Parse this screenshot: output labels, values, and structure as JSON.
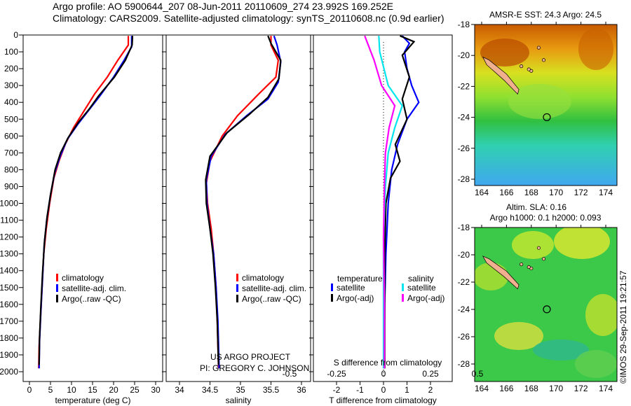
{
  "header": {
    "line1": "Argo profile: AO 5900644_207 08-Jun-2011 20110609_274 23.992S 169.252E",
    "line2": "Climatology: CARS2009. Satellite-adjusted climatology: synTS_20110608.nc (0.9d earlier)"
  },
  "credits": {
    "line1": "US ARGO PROJECT",
    "line2": "PI: GREGORY C. JOHNSON"
  },
  "stamp": "©IMOS 29-Sep-2011 19:21:57",
  "colors": {
    "climatology": "#ff0000",
    "satellite": "#0000ff",
    "argo": "#000000",
    "sal_sat": "#00e5ee",
    "sal_argo": "#ff00ff"
  },
  "chart_data": [
    {
      "type": "line",
      "id": "temperature",
      "xlabel": "temperature (deg C)",
      "xlim": [
        -2,
        31
      ],
      "ylim": [
        2000,
        0
      ],
      "xticks": [
        "0",
        "5",
        "10",
        "15",
        "20",
        "25",
        "30"
      ],
      "yticks": [
        "0",
        "100",
        "200",
        "300",
        "400",
        "500",
        "600",
        "700",
        "800",
        "900",
        "1000",
        "1100",
        "1200",
        "1300",
        "1400",
        "1500",
        "1600",
        "1700",
        "1800",
        "1900",
        "2000"
      ],
      "legend": [
        "climatology",
        "satellite-adj. clim.",
        "Argo(..raw -QC)"
      ],
      "series": [
        {
          "name": "climatology",
          "color": "#ff0000",
          "points": [
            [
              23.5,
              5
            ],
            [
              23.5,
              60
            ],
            [
              21,
              150
            ],
            [
              18.5,
              250
            ],
            [
              15.5,
              350
            ],
            [
              13,
              450
            ],
            [
              10.5,
              550
            ],
            [
              8.5,
              650
            ],
            [
              7,
              750
            ],
            [
              5.8,
              850
            ],
            [
              4.8,
              1000
            ],
            [
              4,
              1150
            ],
            [
              3.4,
              1300
            ],
            [
              3,
              1500
            ],
            [
              2.6,
              1700
            ],
            [
              2.3,
              1850
            ],
            [
              2.2,
              1980
            ]
          ]
        },
        {
          "name": "satellite-adj. clim.",
          "color": "#0000ff",
          "points": [
            [
              24.3,
              5
            ],
            [
              24.3,
              70
            ],
            [
              22.5,
              150
            ],
            [
              20,
              250
            ],
            [
              16.8,
              360
            ],
            [
              14,
              450
            ],
            [
              11.5,
              530
            ],
            [
              9,
              620
            ],
            [
              7.3,
              720
            ],
            [
              6,
              820
            ],
            [
              5,
              950
            ],
            [
              4.1,
              1100
            ],
            [
              3.5,
              1250
            ],
            [
              3.1,
              1450
            ],
            [
              2.7,
              1650
            ],
            [
              2.4,
              1820
            ],
            [
              2.3,
              1980
            ]
          ]
        },
        {
          "name": "Argo(..raw -QC)",
          "color": "#000000",
          "points": [
            [
              24.5,
              5
            ],
            [
              24.4,
              60
            ],
            [
              22.8,
              150
            ],
            [
              20.2,
              250
            ],
            [
              16.5,
              360
            ],
            [
              14.2,
              440
            ],
            [
              11.6,
              520
            ],
            [
              9.2,
              610
            ],
            [
              7.4,
              700
            ],
            [
              6.1,
              800
            ],
            [
              5,
              950
            ],
            [
              4.2,
              1080
            ],
            [
              3.6,
              1220
            ],
            [
              3.1,
              1420
            ],
            [
              2.7,
              1620
            ],
            [
              2.4,
              1800
            ],
            [
              2.3,
              1960
            ]
          ]
        }
      ]
    },
    {
      "type": "line",
      "id": "salinity",
      "xlabel": "salinity",
      "xlim": [
        33.8,
        36.2
      ],
      "ylim": [
        2000,
        0
      ],
      "xticks": [
        "34",
        "34.5",
        "35",
        "35.5",
        "36"
      ],
      "legend": [
        "climatology",
        "satellite-adj. clim.",
        "Argo(..raw -QC)"
      ],
      "series": [
        {
          "name": "climatology",
          "color": "#ff0000",
          "points": [
            [
              35.5,
              5
            ],
            [
              35.5,
              60
            ],
            [
              35.62,
              150
            ],
            [
              35.58,
              250
            ],
            [
              35.3,
              350
            ],
            [
              34.95,
              480
            ],
            [
              34.7,
              600
            ],
            [
              34.5,
              750
            ],
            [
              34.44,
              880
            ],
            [
              34.46,
              1000
            ],
            [
              34.52,
              1150
            ],
            [
              34.56,
              1300
            ],
            [
              34.6,
              1500
            ],
            [
              34.62,
              1700
            ],
            [
              34.64,
              1980
            ]
          ]
        },
        {
          "name": "satellite-adj. clim.",
          "color": "#0000ff",
          "points": [
            [
              35.55,
              5
            ],
            [
              35.6,
              60
            ],
            [
              35.66,
              160
            ],
            [
              35.62,
              280
            ],
            [
              35.45,
              380
            ],
            [
              35.1,
              480
            ],
            [
              34.75,
              590
            ],
            [
              34.52,
              720
            ],
            [
              34.44,
              860
            ],
            [
              34.45,
              1000
            ],
            [
              34.5,
              1150
            ],
            [
              34.56,
              1300
            ],
            [
              34.6,
              1500
            ],
            [
              34.63,
              1700
            ],
            [
              34.65,
              1980
            ]
          ]
        },
        {
          "name": "Argo(..raw -QC)",
          "color": "#000000",
          "points": [
            [
              35.45,
              5
            ],
            [
              35.5,
              50
            ],
            [
              35.66,
              150
            ],
            [
              35.63,
              260
            ],
            [
              35.45,
              370
            ],
            [
              35.15,
              470
            ],
            [
              34.78,
              580
            ],
            [
              34.5,
              720
            ],
            [
              34.43,
              860
            ],
            [
              34.44,
              1000
            ],
            [
              34.5,
              1150
            ],
            [
              34.55,
              1300
            ],
            [
              34.59,
              1500
            ],
            [
              34.62,
              1700
            ],
            [
              34.64,
              1960
            ]
          ]
        }
      ]
    },
    {
      "type": "line",
      "id": "differences",
      "xlabel": "T difference from climatology",
      "x2label": "S difference from climatology",
      "xlim": [
        -3,
        3
      ],
      "ylim": [
        2000,
        0
      ],
      "xticks": [
        "-2",
        "-1",
        "0",
        "1",
        "2"
      ],
      "x2ticks": [
        "-0.5",
        "-0.25",
        "0",
        "0.25",
        "0.5"
      ],
      "legend": {
        "temperature_title": "temperature",
        "salinity_title": "salinity",
        "items": [
          "satellite",
          "Argo(-adj)",
          "satellite",
          "Argo(-adj)"
        ]
      },
      "series": [
        {
          "name": "temperature satellite",
          "color": "#0000ff",
          "points": [
            [
              0.8,
              5
            ],
            [
              1.1,
              50
            ],
            [
              0.9,
              100
            ],
            [
              1,
              200
            ],
            [
              1.2,
              300
            ],
            [
              1.5,
              400
            ],
            [
              1,
              500
            ],
            [
              0.6,
              650
            ],
            [
              0.35,
              800
            ],
            [
              0.2,
              1000
            ],
            [
              0.1,
              1300
            ],
            [
              0.05,
              1600
            ],
            [
              0.02,
              1980
            ]
          ]
        },
        {
          "name": "temperature Argo(-adj)",
          "color": "#000000",
          "points": [
            [
              0.7,
              5
            ],
            [
              1.3,
              40
            ],
            [
              0.8,
              120
            ],
            [
              1.1,
              250
            ],
            [
              0.8,
              380
            ],
            [
              1,
              500
            ],
            [
              0.5,
              650
            ],
            [
              0.7,
              750
            ],
            [
              0.3,
              850
            ],
            [
              0.1,
              1000
            ],
            [
              0.05,
              1300
            ],
            [
              0.05,
              1600
            ],
            [
              0.05,
              1980
            ]
          ]
        },
        {
          "name": "salinity satellite",
          "color": "#00e5ee",
          "points": [
            [
              -0.05,
              5
            ],
            [
              -0.04,
              100
            ],
            [
              0.05,
              300
            ],
            [
              0.2,
              420
            ],
            [
              0.12,
              550
            ],
            [
              0.05,
              700
            ],
            [
              0.02,
              900
            ],
            [
              0,
              1200
            ],
            [
              0,
              1600
            ],
            [
              0,
              1980
            ]
          ]
        },
        {
          "name": "salinity Argo(-adj)",
          "color": "#ff00ff",
          "points": [
            [
              -0.2,
              5
            ],
            [
              -0.1,
              150
            ],
            [
              -0.02,
              300
            ],
            [
              0.12,
              420
            ],
            [
              0.06,
              550
            ],
            [
              0.02,
              700
            ],
            [
              0.01,
              900
            ],
            [
              0,
              1200
            ],
            [
              0.01,
              1600
            ],
            [
              0.01,
              1980
            ]
          ]
        }
      ]
    },
    {
      "type": "heatmap",
      "id": "sst-map",
      "title": "AMSR-E SST: 24.3 Argo: 24.5",
      "xticks": [
        "164",
        "166",
        "168",
        "170",
        "172",
        "174"
      ],
      "yticks": [
        "-18",
        "-20",
        "-22",
        "-24",
        "-26",
        "-28"
      ],
      "xlim": [
        163.5,
        174.5
      ],
      "ylim": [
        -29.5,
        -18
      ],
      "marker": [
        169.252,
        -23.992
      ]
    },
    {
      "type": "heatmap",
      "id": "sla-map",
      "title1": "Altim. SLA: 0.16",
      "title2": "Argo h1000: 0.1 h2000: 0.093",
      "xticks": [
        "164",
        "166",
        "168",
        "170",
        "172",
        "174"
      ],
      "yticks": [
        "-18",
        "-20",
        "-22",
        "-24",
        "-26",
        "-28"
      ],
      "xlim": [
        163.5,
        174.5
      ],
      "ylim": [
        -29.5,
        -18
      ],
      "marker": [
        169.252,
        -23.992
      ]
    }
  ]
}
